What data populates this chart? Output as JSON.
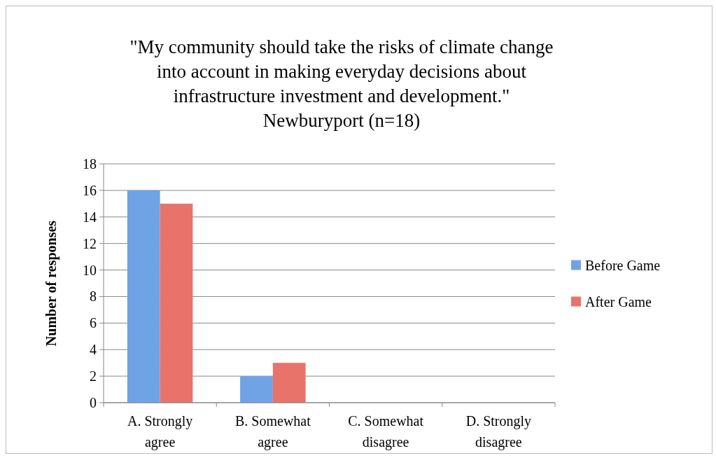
{
  "chart_data": {
    "type": "bar",
    "title": "\"My community should take the risks of climate change\ninto account in making everyday decisions about\ninfrastructure investment and development.\"",
    "subtitle": "Newburyport (n=18)",
    "ylabel": "Number of responses",
    "categories": [
      "A. Strongly agree",
      "B. Somewhat agree",
      "C. Somewhat disagree",
      "D. Strongly disagree"
    ],
    "series": [
      {
        "name": "Before Game",
        "color": "#6fa3e6",
        "values": [
          16,
          2,
          0,
          0
        ]
      },
      {
        "name": "After Game",
        "color": "#e8736a",
        "values": [
          15,
          3,
          0,
          0
        ]
      }
    ],
    "ylim": [
      0,
      18
    ],
    "yticks": [
      0,
      2,
      4,
      6,
      8,
      10,
      12,
      14,
      16,
      18
    ],
    "grid": "y",
    "legend": "right"
  }
}
